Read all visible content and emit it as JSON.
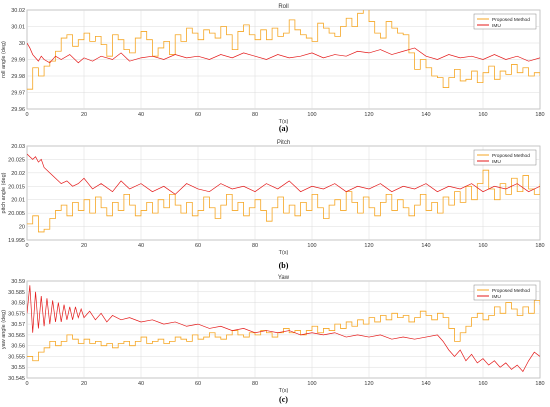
{
  "chart_data": [
    {
      "type": "line",
      "title": "Roll",
      "xlabel": "T(s)",
      "ylabel": "roll angle (deg)",
      "caption": "(a)",
      "xlim": [
        0,
        180
      ],
      "ylim": [
        29.96,
        30.02
      ],
      "xticks": [
        0,
        20,
        40,
        60,
        80,
        100,
        120,
        140,
        160,
        180
      ],
      "yticks": [
        29.96,
        29.97,
        29.98,
        29.99,
        30,
        30.01,
        30.02
      ],
      "ytick_labels": [
        "29.96",
        "29.97",
        "29.98",
        "29.99",
        "30",
        "30.01",
        "30.02"
      ],
      "grid": true,
      "legend": "top-right",
      "series": [
        {
          "name": "Proposed Method",
          "color": "#f5a623",
          "style": "step",
          "x": [
            0,
            2,
            4,
            6,
            8,
            10,
            12,
            14,
            16,
            18,
            20,
            22,
            24,
            26,
            28,
            30,
            32,
            34,
            36,
            38,
            40,
            42,
            44,
            46,
            48,
            50,
            52,
            54,
            56,
            58,
            60,
            62,
            64,
            66,
            68,
            70,
            72,
            74,
            76,
            78,
            80,
            82,
            84,
            86,
            88,
            90,
            92,
            94,
            96,
            98,
            100,
            102,
            104,
            106,
            108,
            110,
            112,
            114,
            116,
            118,
            120,
            122,
            124,
            126,
            128,
            130,
            132,
            134,
            136,
            138,
            140,
            142,
            144,
            146,
            148,
            150,
            152,
            154,
            156,
            158,
            160,
            162,
            164,
            166,
            168,
            170,
            172,
            174,
            176,
            178,
            180
          ],
          "y": [
            29.972,
            29.985,
            29.98,
            29.986,
            29.989,
            29.995,
            30.003,
            30.005,
            29.998,
            30.002,
            30.006,
            30.001,
            30.004,
            29.999,
            29.992,
            30.005,
            30.002,
            29.996,
            29.994,
            30.003,
            30.007,
            30.002,
            29.992,
            29.997,
            30.001,
            29.993,
            30.005,
            30.001,
            30.009,
            30.006,
            30.002,
            30.008,
            30.006,
            30.003,
            30.01,
            30.005,
            29.996,
            30.007,
            30.011,
            30.005,
            30.002,
            30.008,
            30.002,
            30.009,
            30.004,
            30.006,
            30.014,
            30.008,
            30.005,
            30.003,
            30.001,
            30.012,
            30.009,
            30.006,
            30.004,
            30.01,
            30.015,
            30.01,
            30.018,
            30.022,
            30.013,
            30.006,
            30.003,
            30.013,
            30.009,
            30.006,
            30.005,
            29.994,
            29.984,
            29.99,
            29.985,
            29.98,
            29.979,
            29.973,
            29.979,
            29.984,
            29.977,
            29.978,
            29.983,
            29.976,
            29.982,
            29.986,
            29.978,
            29.983,
            29.981,
            29.987,
            29.982,
            29.985,
            29.98,
            29.982,
            29.98
          ]
        },
        {
          "name": "IMU",
          "color": "#e41a1a",
          "style": "line",
          "x": [
            0,
            1,
            2,
            3,
            4,
            5,
            6,
            8,
            10,
            12,
            15,
            18,
            20,
            23,
            26,
            30,
            33,
            36,
            40,
            44,
            48,
            52,
            56,
            60,
            64,
            68,
            72,
            76,
            80,
            84,
            88,
            92,
            96,
            100,
            104,
            108,
            112,
            116,
            120,
            124,
            128,
            132,
            136,
            140,
            144,
            148,
            152,
            156,
            160,
            164,
            168,
            172,
            176,
            180
          ],
          "y": [
            30.0,
            29.997,
            29.993,
            29.991,
            29.989,
            29.992,
            29.99,
            29.988,
            29.992,
            29.99,
            29.993,
            29.988,
            29.991,
            29.989,
            29.992,
            29.99,
            29.994,
            29.989,
            29.991,
            29.992,
            29.99,
            29.993,
            29.991,
            29.992,
            29.99,
            29.993,
            29.991,
            29.994,
            29.992,
            29.99,
            29.993,
            29.991,
            29.992,
            29.994,
            29.991,
            29.993,
            29.992,
            29.995,
            29.994,
            29.996,
            29.993,
            29.995,
            29.997,
            29.992,
            29.99,
            29.993,
            29.991,
            29.992,
            29.99,
            29.993,
            29.99,
            29.992,
            29.989,
            29.991
          ]
        }
      ]
    },
    {
      "type": "line",
      "title": "Pitch",
      "xlabel": "T(s)",
      "ylabel": "pitch angle (deg)",
      "caption": "(b)",
      "xlim": [
        0,
        180
      ],
      "ylim": [
        19.995,
        20.03
      ],
      "xticks": [
        0,
        20,
        40,
        60,
        80,
        100,
        120,
        140,
        160,
        180
      ],
      "yticks": [
        19.995,
        20,
        20.005,
        20.01,
        20.015,
        20.02,
        20.025,
        20.03
      ],
      "ytick_labels": [
        "19.995",
        "20",
        "20.005",
        "20.01",
        "20.015",
        "20.02",
        "20.025",
        "20.03"
      ],
      "grid": true,
      "legend": "top-right",
      "series": [
        {
          "name": "Proposed Method",
          "color": "#f5a623",
          "style": "step",
          "x": [
            0,
            2,
            4,
            6,
            8,
            10,
            12,
            14,
            16,
            18,
            20,
            22,
            24,
            26,
            28,
            30,
            32,
            34,
            36,
            38,
            40,
            42,
            44,
            46,
            48,
            50,
            52,
            54,
            56,
            58,
            60,
            62,
            64,
            66,
            68,
            70,
            72,
            74,
            76,
            78,
            80,
            82,
            84,
            86,
            88,
            90,
            92,
            94,
            96,
            98,
            100,
            102,
            104,
            106,
            108,
            110,
            112,
            114,
            116,
            118,
            120,
            122,
            124,
            126,
            128,
            130,
            132,
            134,
            136,
            138,
            140,
            142,
            144,
            146,
            148,
            150,
            152,
            154,
            156,
            158,
            160,
            162,
            164,
            166,
            168,
            170,
            172,
            174,
            176,
            178,
            180
          ],
          "y": [
            20.001,
            20.004,
            19.998,
            19.999,
            20.003,
            20.006,
            20.008,
            20.004,
            20.009,
            20.006,
            20.01,
            20.005,
            20.011,
            20.007,
            20.004,
            20.009,
            20.006,
            20.012,
            20.008,
            20.004,
            20.006,
            20.009,
            20.005,
            20.01,
            20.007,
            20.012,
            20.008,
            20.005,
            20.009,
            20.004,
            20.006,
            20.011,
            20.007,
            20.003,
            20.008,
            20.012,
            20.006,
            20.009,
            20.004,
            20.007,
            20.01,
            20.006,
            20.002,
            20.007,
            20.011,
            20.005,
            20.008,
            20.004,
            20.009,
            20.006,
            20.012,
            20.007,
            20.003,
            20.008,
            20.01,
            20.006,
            20.013,
            20.009,
            20.005,
            20.011,
            20.007,
            20.004,
            20.009,
            20.012,
            20.006,
            20.01,
            20.007,
            20.004,
            20.008,
            20.012,
            20.006,
            20.009,
            20.005,
            20.011,
            20.008,
            20.013,
            20.009,
            20.015,
            20.01,
            20.016,
            20.021,
            20.014,
            20.01,
            20.016,
            20.012,
            20.018,
            20.013,
            20.019,
            20.014,
            20.012,
            20.016
          ]
        },
        {
          "name": "IMU",
          "color": "#e41a1a",
          "style": "line",
          "x": [
            0,
            1,
            2,
            3,
            4,
            5,
            6,
            8,
            10,
            12,
            14,
            16,
            18,
            20,
            23,
            26,
            30,
            33,
            36,
            40,
            44,
            48,
            52,
            56,
            60,
            64,
            68,
            72,
            76,
            80,
            84,
            88,
            92,
            96,
            100,
            104,
            108,
            112,
            116,
            120,
            124,
            128,
            132,
            136,
            140,
            144,
            148,
            152,
            156,
            160,
            164,
            168,
            172,
            176,
            180
          ],
          "y": [
            20.027,
            20.026,
            20.025,
            20.026,
            20.024,
            20.025,
            20.022,
            20.02,
            20.018,
            20.016,
            20.017,
            20.015,
            20.016,
            20.018,
            20.014,
            20.016,
            20.013,
            20.017,
            20.014,
            20.016,
            20.013,
            20.015,
            20.012,
            20.016,
            20.014,
            20.013,
            20.016,
            20.014,
            20.015,
            20.013,
            20.016,
            20.014,
            20.017,
            20.013,
            20.015,
            20.014,
            20.016,
            20.013,
            20.015,
            20.014,
            20.016,
            20.013,
            20.015,
            20.014,
            20.016,
            20.013,
            20.015,
            20.014,
            20.016,
            20.013,
            20.015,
            20.014,
            20.016,
            20.013,
            20.015
          ]
        }
      ]
    },
    {
      "type": "line",
      "title": "Yaw",
      "xlabel": "T(s)",
      "ylabel": "yaw angle (deg)",
      "caption": "(c)",
      "xlim": [
        0,
        180
      ],
      "ylim": [
        30.545,
        30.59
      ],
      "xticks": [
        0,
        20,
        40,
        60,
        80,
        100,
        120,
        140,
        160,
        180
      ],
      "yticks": [
        30.545,
        30.55,
        30.555,
        30.56,
        30.565,
        30.57,
        30.575,
        30.58,
        30.585,
        30.59
      ],
      "ytick_labels": [
        "30.545",
        "30.55",
        "30.555",
        "30.56",
        "30.565",
        "30.57",
        "30.575",
        "30.58",
        "30.585",
        "30.59"
      ],
      "grid": true,
      "legend": "top-right",
      "series": [
        {
          "name": "Proposed Method",
          "color": "#f5a623",
          "style": "step",
          "x": [
            0,
            2,
            4,
            6,
            8,
            10,
            12,
            14,
            16,
            18,
            20,
            22,
            24,
            26,
            28,
            30,
            32,
            34,
            36,
            38,
            40,
            42,
            44,
            46,
            48,
            50,
            52,
            54,
            56,
            58,
            60,
            62,
            64,
            66,
            68,
            70,
            72,
            74,
            76,
            78,
            80,
            82,
            84,
            86,
            88,
            90,
            92,
            94,
            96,
            98,
            100,
            102,
            104,
            106,
            108,
            110,
            112,
            114,
            116,
            118,
            120,
            122,
            124,
            126,
            128,
            130,
            132,
            134,
            136,
            138,
            140,
            142,
            144,
            146,
            148,
            150,
            152,
            154,
            156,
            158,
            160,
            162,
            164,
            166,
            168,
            170,
            172,
            174,
            176,
            178,
            180
          ],
          "y": [
            30.555,
            30.553,
            30.557,
            30.559,
            30.562,
            30.56,
            30.562,
            30.565,
            30.563,
            30.561,
            30.563,
            30.561,
            30.562,
            30.56,
            30.561,
            30.559,
            30.561,
            30.562,
            30.56,
            30.562,
            30.564,
            30.561,
            30.562,
            30.563,
            30.561,
            30.562,
            30.564,
            30.563,
            30.562,
            30.565,
            30.563,
            30.564,
            30.566,
            30.564,
            30.563,
            30.565,
            30.567,
            30.565,
            30.564,
            30.566,
            30.565,
            30.567,
            30.566,
            30.564,
            30.566,
            30.568,
            30.566,
            30.567,
            30.565,
            30.567,
            30.569,
            30.566,
            30.568,
            30.567,
            30.57,
            30.568,
            30.571,
            30.569,
            30.572,
            30.57,
            30.573,
            30.571,
            30.574,
            30.572,
            30.575,
            30.573,
            30.574,
            30.571,
            30.573,
            30.576,
            30.574,
            30.572,
            30.575,
            30.573,
            30.568,
            30.562,
            30.566,
            30.569,
            30.573,
            30.575,
            30.572,
            30.574,
            30.578,
            30.575,
            30.58,
            30.577,
            30.574,
            30.578,
            30.575,
            30.581,
            30.579
          ]
        },
        {
          "name": "IMU",
          "color": "#e41a1a",
          "style": "line",
          "x": [
            0,
            1,
            2,
            3,
            4,
            5,
            6,
            7,
            8,
            9,
            10,
            11,
            12,
            13,
            14,
            15,
            16,
            17,
            18,
            19,
            20,
            22,
            24,
            26,
            28,
            30,
            33,
            36,
            40,
            44,
            48,
            52,
            56,
            60,
            64,
            68,
            72,
            76,
            80,
            84,
            88,
            92,
            96,
            100,
            104,
            108,
            112,
            116,
            120,
            124,
            128,
            132,
            136,
            140,
            144,
            146,
            148,
            150,
            152,
            154,
            156,
            158,
            160,
            162,
            164,
            166,
            168,
            170,
            172,
            174,
            176,
            178,
            180
          ],
          "y": [
            30.575,
            30.588,
            30.566,
            30.585,
            30.568,
            30.583,
            30.569,
            30.582,
            30.57,
            30.581,
            30.571,
            30.58,
            30.571,
            30.579,
            30.572,
            30.578,
            30.572,
            30.578,
            30.573,
            30.577,
            30.573,
            30.576,
            30.572,
            30.575,
            30.571,
            30.574,
            30.572,
            30.573,
            30.571,
            30.572,
            30.57,
            30.571,
            30.569,
            30.57,
            30.568,
            30.569,
            30.567,
            30.568,
            30.566,
            30.567,
            30.566,
            30.567,
            30.565,
            30.566,
            30.565,
            30.566,
            30.564,
            30.565,
            30.564,
            30.565,
            30.563,
            30.564,
            30.563,
            30.564,
            30.565,
            30.562,
            30.558,
            30.555,
            30.558,
            30.553,
            30.556,
            30.552,
            30.554,
            30.551,
            30.553,
            30.55,
            30.552,
            30.549,
            30.551,
            30.548,
            30.553,
            30.557,
            30.555
          ]
        }
      ]
    }
  ]
}
